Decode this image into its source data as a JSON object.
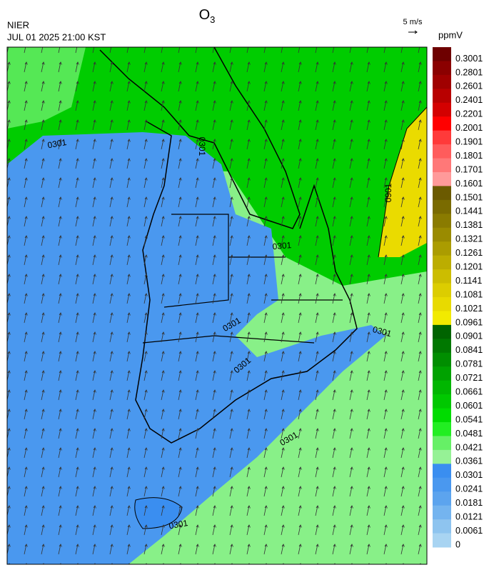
{
  "header": {
    "title": "O",
    "title_subscript": "3",
    "source": "NIER",
    "datetime": "JUL 01 2025 21:00 KST"
  },
  "wind_scale": {
    "label": "5 m/s"
  },
  "colorbar": {
    "unit": "ppmV",
    "labels": [
      "0.3001",
      "0.2801",
      "0.2601",
      "0.2401",
      "0.2201",
      "0.2001",
      "0.1901",
      "0.1801",
      "0.1701",
      "0.1601",
      "0.1501",
      "0.1441",
      "0.1381",
      "0.1321",
      "0.1261",
      "0.1201",
      "0.1141",
      "0.1081",
      "0.1021",
      "0.0961",
      "0.0901",
      "0.0841",
      "0.0781",
      "0.0721",
      "0.0661",
      "0.0601",
      "0.0541",
      "0.0481",
      "0.0421",
      "0.0361",
      "0.0301",
      "0.0241",
      "0.0181",
      "0.0121",
      "0.0061",
      "0"
    ],
    "colors": [
      "#6e0000",
      "#8b0000",
      "#a00000",
      "#b80000",
      "#d40000",
      "#ff0000",
      "#ff3a3a",
      "#ff5c5c",
      "#ff7878",
      "#ff9a9a",
      "#6b5a00",
      "#7a6b00",
      "#8a7b00",
      "#9a8b00",
      "#ab9c00",
      "#bcad00",
      "#ccbd00",
      "#dccd00",
      "#e8da00",
      "#f2ea00",
      "#006400",
      "#007800",
      "#008e00",
      "#00a200",
      "#00b600",
      "#00c800",
      "#00dc00",
      "#22ee22",
      "#66f066",
      "#96f296",
      "#3a8ef0",
      "#4a98ef",
      "#5ca4ee",
      "#74b4ef",
      "#8ec4ef",
      "#a8d4f2"
    ]
  },
  "contour_labels": [
    "0301",
    "0301",
    "0301",
    "0301",
    "0301",
    "0301",
    "0301",
    "0301",
    "0901"
  ]
}
